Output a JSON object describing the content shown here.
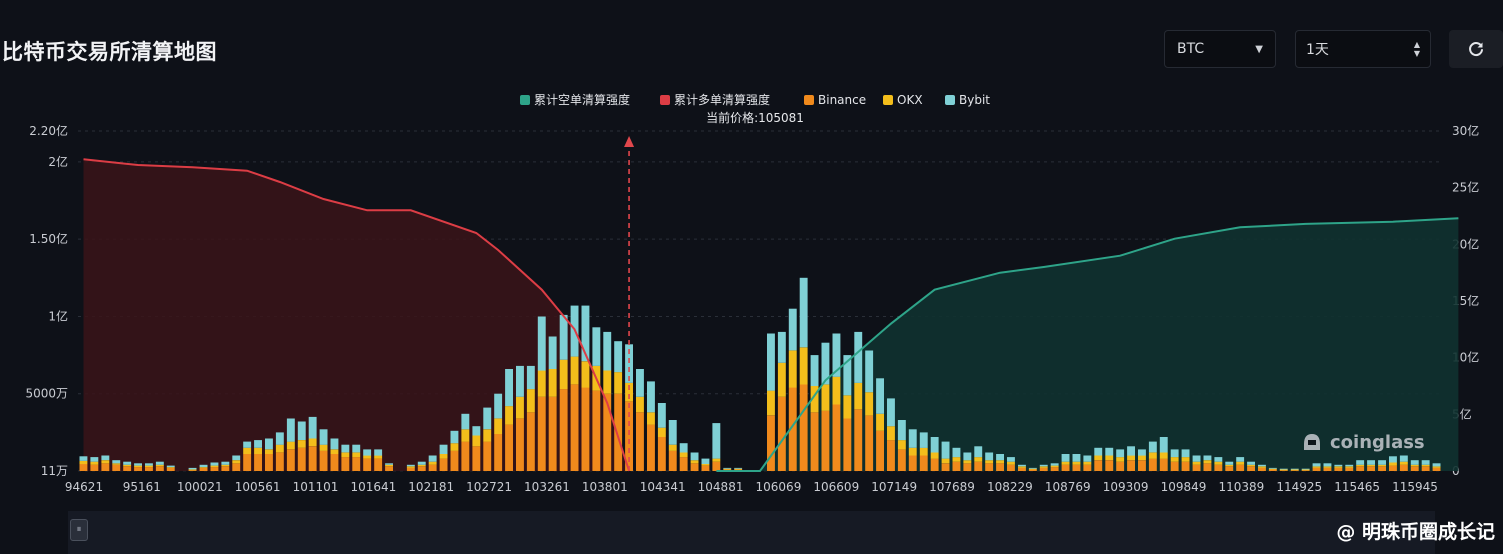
{
  "page": {
    "title": "比特币交易所清算地图"
  },
  "controls": {
    "symbol": "BTC",
    "interval": "1天",
    "symbol_icon": "chevron-down-icon",
    "interval_icon": "updown-icon",
    "refresh_icon": "refresh-icon"
  },
  "watermark": {
    "brand": "coinglass",
    "author": "@ 明珠币圈成长记"
  },
  "chart_data": {
    "type": "bar",
    "current_price_label": "当前价格:105081",
    "legend": [
      {
        "name": "累计空单清算强度",
        "color": "#2ea489"
      },
      {
        "name": "累计多单清算强度",
        "color": "#dc3d45"
      },
      {
        "name": "Binance",
        "color": "#f08a1c"
      },
      {
        "name": "OKX",
        "color": "#f3be1b"
      },
      {
        "name": "Bybit",
        "color": "#7fd0d5"
      }
    ],
    "y_left_ticks": [
      "11万",
      "5000万",
      "1亿",
      "1.50亿",
      "2亿",
      "2.20亿"
    ],
    "y_left_values": [
      0.0011,
      0.5,
      1.0,
      1.5,
      2.0,
      2.2
    ],
    "y_left_range": [
      0,
      2.2
    ],
    "y_right_ticks": [
      "0",
      "5亿",
      "10亿",
      "15亿",
      "20亿",
      "25亿",
      "30亿"
    ],
    "y_right_range": [
      0,
      30
    ],
    "x_ticks": [
      "94621",
      "95161",
      "100021",
      "100561",
      "101101",
      "101641",
      "102181",
      "102721",
      "103261",
      "103801",
      "104341",
      "104881",
      "106069",
      "106609",
      "107149",
      "107689",
      "108229",
      "108769",
      "109309",
      "109849",
      "110389",
      "114925",
      "115465",
      "115945"
    ],
    "current_price_index": 50,
    "series": [
      {
        "name": "Binance",
        "values": [
          0.045,
          0.04,
          0.05,
          0.04,
          0.03,
          0.025,
          0.025,
          0.03,
          0.02,
          0,
          0.005,
          0.02,
          0.025,
          0.03,
          0.05,
          0.11,
          0.11,
          0.11,
          0.12,
          0.14,
          0.15,
          0.16,
          0.13,
          0.11,
          0.09,
          0.09,
          0.08,
          0.08,
          0.03,
          0,
          0.02,
          0.03,
          0.04,
          0.08,
          0.13,
          0.19,
          0.16,
          0.19,
          0.24,
          0.3,
          0.34,
          0.38,
          0.48,
          0.48,
          0.53,
          0.56,
          0.54,
          0.52,
          0.5,
          0.5,
          0.45,
          0.38,
          0.3,
          0.22,
          0.13,
          0.09,
          0.05,
          0.035,
          0.06,
          0.01,
          0.01,
          0,
          0,
          0.36,
          0.48,
          0.54,
          0.56,
          0.38,
          0.39,
          0.43,
          0.34,
          0.4,
          0.36,
          0.26,
          0.2,
          0.14,
          0.1,
          0.1,
          0.08,
          0.05,
          0.06,
          0.05,
          0.06,
          0.05,
          0.05,
          0.04,
          0.02,
          0.01,
          0.02,
          0.025,
          0.04,
          0.04,
          0.04,
          0.07,
          0.07,
          0.06,
          0.07,
          0.07,
          0.08,
          0.08,
          0.06,
          0.06,
          0.04,
          0.05,
          0.04,
          0.03,
          0.04,
          0.03,
          0.02,
          0.01,
          0.005,
          0.005,
          0.005,
          0.02,
          0.02,
          0.02,
          0.02,
          0.03,
          0.03,
          0.03,
          0.035,
          0.04,
          0.03,
          0.03,
          0.02
        ]
      },
      {
        "name": "OKX",
        "values": [
          0.02,
          0.02,
          0.02,
          0.01,
          0.01,
          0.01,
          0.01,
          0.01,
          0.005,
          0,
          0.005,
          0.005,
          0.01,
          0.01,
          0.02,
          0.04,
          0.04,
          0.03,
          0.05,
          0.05,
          0.05,
          0.05,
          0.04,
          0.03,
          0.03,
          0.03,
          0.02,
          0.02,
          0.01,
          0,
          0.01,
          0.01,
          0.02,
          0.03,
          0.05,
          0.08,
          0.07,
          0.08,
          0.1,
          0.12,
          0.14,
          0.15,
          0.17,
          0.18,
          0.19,
          0.18,
          0.17,
          0.16,
          0.15,
          0.14,
          0.12,
          0.1,
          0.08,
          0.06,
          0.04,
          0.03,
          0.02,
          0.01,
          0.02,
          0.005,
          0.005,
          0,
          0,
          0.16,
          0.22,
          0.24,
          0.24,
          0.17,
          0.17,
          0.18,
          0.15,
          0.17,
          0.15,
          0.11,
          0.09,
          0.06,
          0.05,
          0.05,
          0.04,
          0.03,
          0.03,
          0.02,
          0.03,
          0.02,
          0.02,
          0.02,
          0.01,
          0.005,
          0.01,
          0.01,
          0.02,
          0.02,
          0.02,
          0.03,
          0.03,
          0.03,
          0.03,
          0.03,
          0.04,
          0.04,
          0.03,
          0.03,
          0.02,
          0.02,
          0.02,
          0.01,
          0.02,
          0.01,
          0.01,
          0.005,
          0.005,
          0.005,
          0.005,
          0.01,
          0.01,
          0.01,
          0.01,
          0.01,
          0.01,
          0.01,
          0.02,
          0.02,
          0.01,
          0.01,
          0.01
        ]
      },
      {
        "name": "Bybit",
        "values": [
          0.03,
          0.03,
          0.03,
          0.02,
          0.02,
          0.015,
          0.015,
          0.02,
          0.01,
          0,
          0.01,
          0.015,
          0.02,
          0.02,
          0.03,
          0.04,
          0.05,
          0.07,
          0.08,
          0.15,
          0.12,
          0.14,
          0.1,
          0.07,
          0.05,
          0.05,
          0.04,
          0.04,
          0.01,
          0,
          0.01,
          0.02,
          0.04,
          0.06,
          0.08,
          0.1,
          0.06,
          0.14,
          0.16,
          0.24,
          0.2,
          0.15,
          0.35,
          0.21,
          0.29,
          0.33,
          0.36,
          0.25,
          0.25,
          0.2,
          0.25,
          0.18,
          0.2,
          0.16,
          0.16,
          0.06,
          0.05,
          0.035,
          0.23,
          0.005,
          0.005,
          0,
          0,
          0.37,
          0.2,
          0.27,
          0.45,
          0.2,
          0.27,
          0.28,
          0.26,
          0.33,
          0.27,
          0.23,
          0.18,
          0.13,
          0.12,
          0.1,
          0.1,
          0.11,
          0.06,
          0.05,
          0.07,
          0.05,
          0.04,
          0.03,
          0.01,
          0.005,
          0.01,
          0.015,
          0.05,
          0.05,
          0.04,
          0.05,
          0.05,
          0.05,
          0.06,
          0.04,
          0.07,
          0.1,
          0.05,
          0.05,
          0.04,
          0.03,
          0.03,
          0.02,
          0.03,
          0.02,
          0.01,
          0.005,
          0.005,
          0.005,
          0.005,
          0.02,
          0.02,
          0.01,
          0.01,
          0.03,
          0.03,
          0.03,
          0.04,
          0.04,
          0.03,
          0.03,
          0.02
        ]
      },
      {
        "name": "累计多单清算强度",
        "x_index": [
          0,
          5,
          10,
          15,
          18,
          22,
          26,
          30,
          36,
          38,
          42,
          45,
          48,
          50
        ],
        "values": [
          27.5,
          27,
          26.8,
          26.5,
          25.5,
          24,
          23,
          23,
          21,
          19.5,
          16,
          12.5,
          6,
          0
        ]
      },
      {
        "name": "累计空单清算强度",
        "x_index": [
          58,
          62,
          68,
          74,
          78,
          84,
          88,
          95,
          100,
          106,
          112,
          120,
          126
        ],
        "values": [
          0,
          0,
          8,
          13,
          16,
          17.5,
          18,
          19,
          20.5,
          21.5,
          21.8,
          22,
          22.3
        ]
      }
    ],
    "grid": true
  }
}
